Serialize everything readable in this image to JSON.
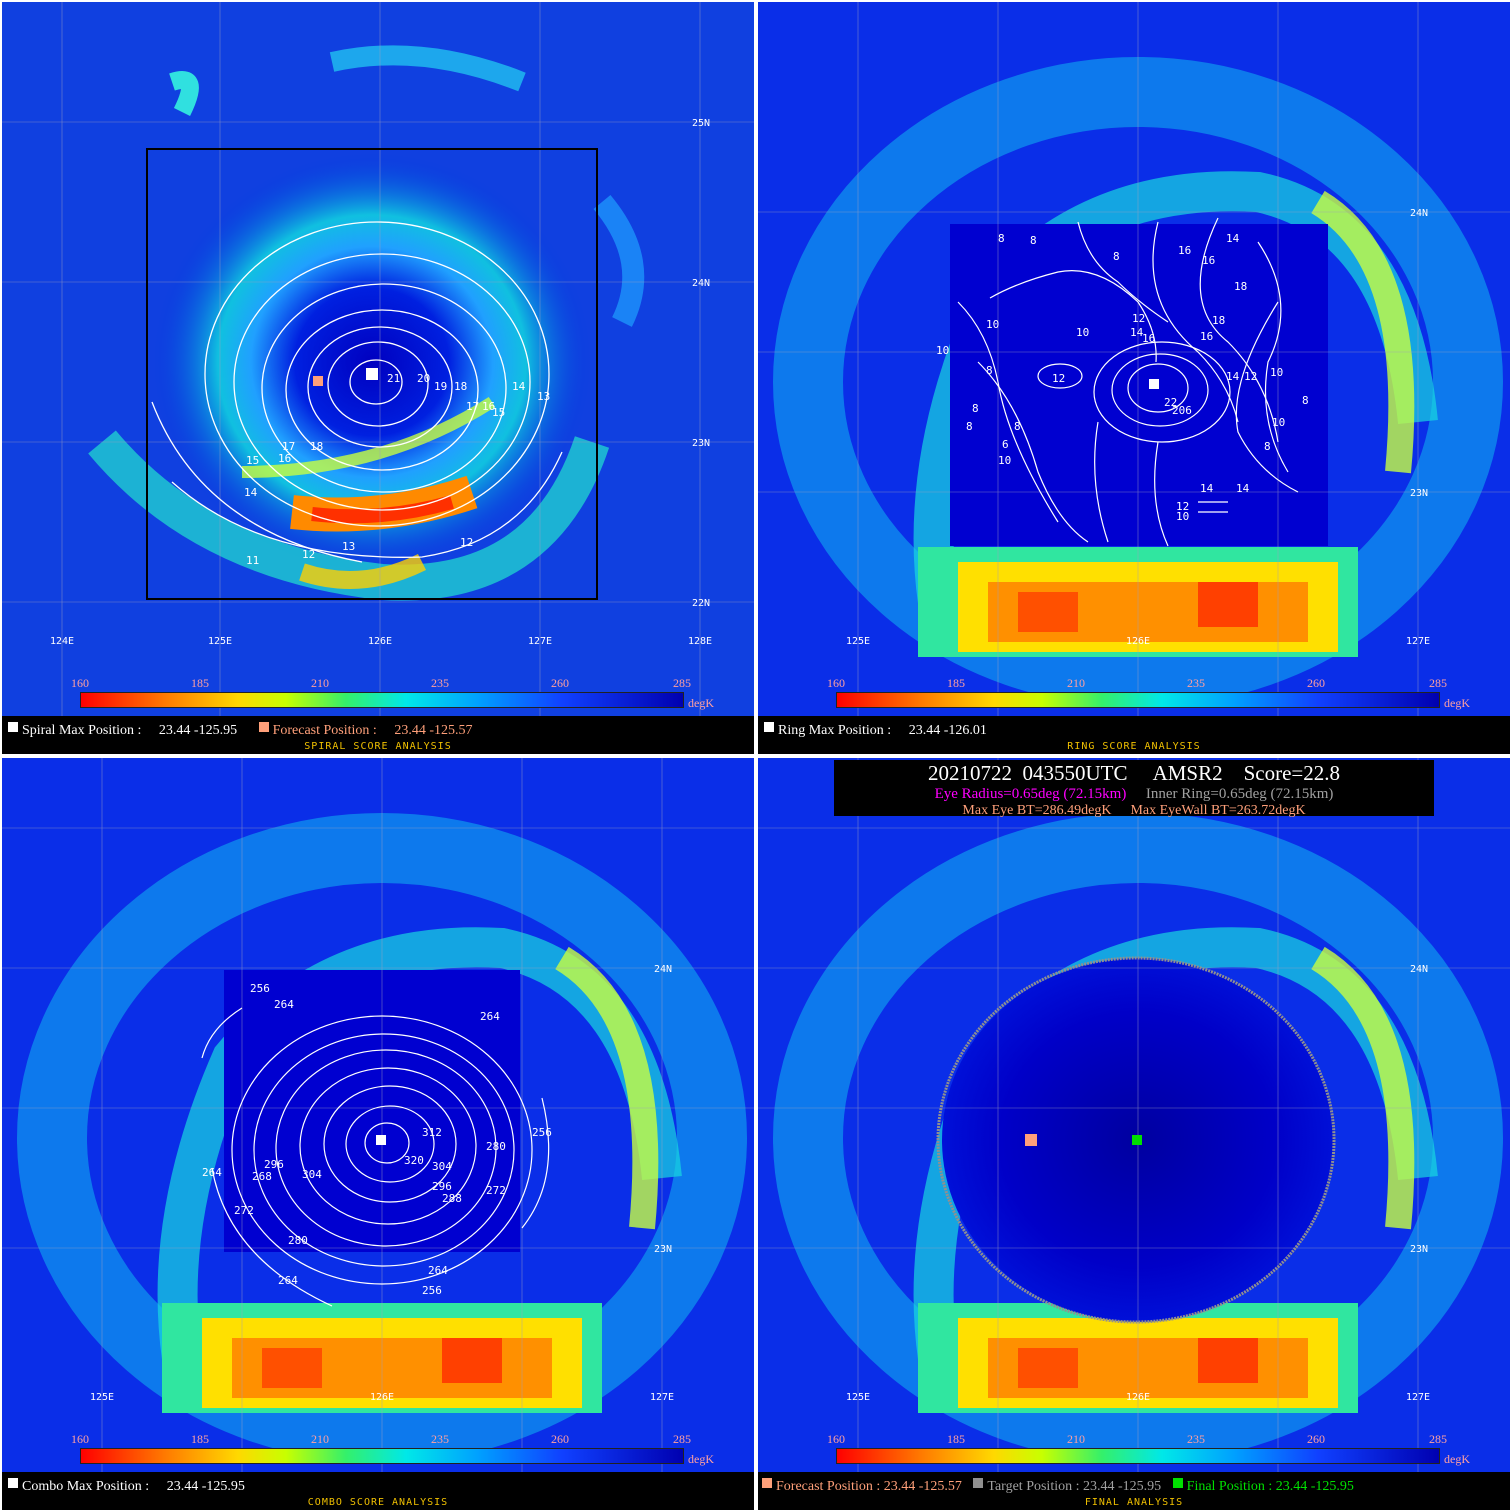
{
  "colors": {
    "white_marker": "#ffffff",
    "forecast_marker": "#ffa07a",
    "target_marker": "#909090",
    "final_marker": "#00e000",
    "eye_radius_text": "#ff00ff",
    "inner_ring_text": "#a0a0a0",
    "subtitle_text": "#f0c000",
    "colorbar_ticks": "#ffa0a0"
  },
  "colorbar": {
    "ticks": [
      "160",
      "185",
      "210",
      "235",
      "260",
      "285"
    ],
    "unit": "degK"
  },
  "panels": {
    "spiral": {
      "title": "SPIRAL SCORE ANALYSIS",
      "max_label": "Spiral Max Position :",
      "max_value": "23.44 -125.95",
      "forecast_label": "Forecast Position :",
      "forecast_value": "23.44 -125.57",
      "lat_labels": [
        "25N",
        "24N",
        "23N",
        "22N"
      ],
      "lon_labels": [
        "124E",
        "125E",
        "126E",
        "127E",
        "128E"
      ],
      "contour_labels": [
        "21",
        "20",
        "19",
        "18",
        "17",
        "16",
        "15",
        "14",
        "13",
        "17",
        "18",
        "15",
        "16",
        "14",
        "12",
        "13",
        "12",
        "11"
      ]
    },
    "ring": {
      "title": "RING SCORE ANALYSIS",
      "max_label": "Ring Max Position :",
      "max_value": "23.44 -126.01",
      "lat_labels": [
        "24N",
        "23N"
      ],
      "lon_labels": [
        "125E",
        "126E",
        "127E"
      ],
      "contour_labels": [
        "8",
        "8",
        "8",
        "16",
        "14",
        "16",
        "10",
        "18",
        "10",
        "12",
        "18",
        "10",
        "16",
        "14",
        "16",
        "8",
        "12",
        "14",
        "12",
        "10",
        "22",
        "206",
        "8",
        "8",
        "8",
        "6",
        "10",
        "8",
        "8",
        "10",
        "14",
        "14",
        "12",
        "10"
      ]
    },
    "combo": {
      "title": "COMBO SCORE ANALYSIS",
      "max_label": "Combo Max Position :",
      "max_value": "23.44 -125.95",
      "lat_labels": [
        "24N",
        "23N"
      ],
      "lon_labels": [
        "125E",
        "126E",
        "127E"
      ],
      "contour_labels": [
        "256",
        "264",
        "264",
        "312",
        "256",
        "280",
        "264",
        "296",
        "320",
        "304",
        "268",
        "304",
        "296",
        "288",
        "272",
        "272",
        "280",
        "264",
        "264",
        "256"
      ]
    },
    "final": {
      "title": "FINAL ANALYSIS",
      "header_line1": "20210722  043550UTC     AMSR2    Score=22.8",
      "eye_radius": "Eye Radius=0.65deg (72.15km)",
      "inner_ring": "Inner Ring=0.65deg (72.15km)",
      "max_eye_bt": "Max Eye BT=286.49degK",
      "max_eyewall_bt": "Max EyeWall BT=263.72degK",
      "forecast_label": "Forecast Position : 23.44 -125.57",
      "target_label": "Target Position : 23.44 -125.95",
      "final_label": "Final Position : 23.44 -125.95",
      "lat_labels": [
        "24N",
        "23N"
      ],
      "lon_labels": [
        "125E",
        "126E",
        "127E"
      ]
    }
  }
}
